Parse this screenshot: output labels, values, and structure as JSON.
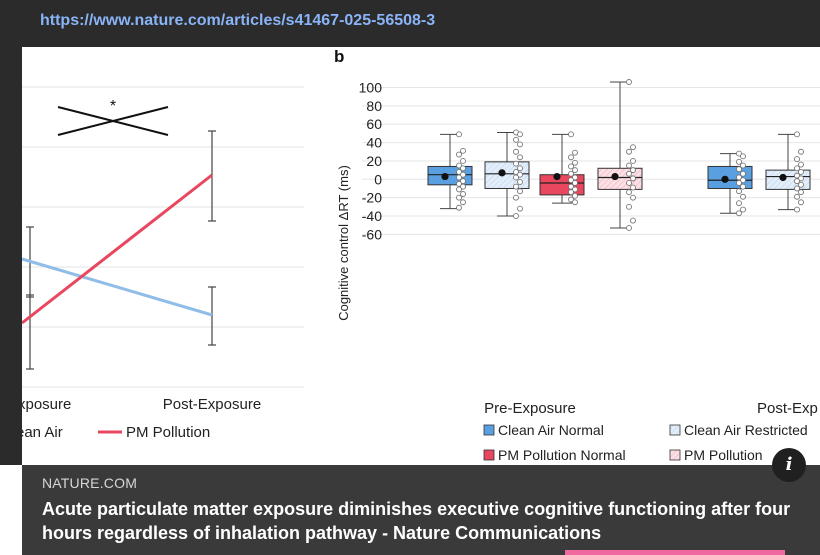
{
  "url_bar": {
    "url": "https://www.nature.com/articles/s41467-025-56508-3"
  },
  "caption": {
    "source": "NATURE.COM",
    "title": "Acute particulate matter exposure diminishes executive cognitive functioning after four hours regardless of inhalation pathway - Nature Communications"
  },
  "info_button": {
    "label": "i",
    "icon": "info-icon"
  },
  "chart_data": [
    {
      "type": "line",
      "panel_label": "",
      "categories": [
        "Pre-Exposure",
        "Post-Exposure"
      ],
      "category_labels_visible": [
        "xposure",
        "Post-Exposure"
      ],
      "significance": "*",
      "series": [
        {
          "name": "Clean Air",
          "legend_label_visible": "ean Air",
          "color": "#8fbde8"
        },
        {
          "name": "PM Pollution",
          "legend_label_visible": "PM Pollution",
          "color": "#e8475f"
        }
      ]
    },
    {
      "type": "box",
      "panel_label": "b",
      "ylabel": "Cognitive control ΔRT (ms)",
      "ylim": [
        -60,
        100
      ],
      "yticks": [
        -60,
        -40,
        -20,
        0,
        20,
        40,
        60,
        80,
        100
      ],
      "grid": true,
      "groups": [
        {
          "label": "Pre-Exposure",
          "label_visible": "Pre-Exposure"
        },
        {
          "label": "Post-Exposure",
          "label_visible": "Post-Exp"
        }
      ],
      "legend": [
        {
          "label": "Clean Air Normal",
          "color": "#4a90d9",
          "pattern": "solid"
        },
        {
          "label": "Clean Air Restricted",
          "color": "#cfe3f7",
          "pattern": "hatched"
        },
        {
          "label": "PM Pollution Normal",
          "color": "#e8475f",
          "pattern": "solid"
        },
        {
          "label": "PM Pollution",
          "label_visible": "PM Pollution",
          "color": "#f6c7cf",
          "pattern": "hatched"
        }
      ],
      "boxes": [
        {
          "group": "Pre-Exposure",
          "series": "Clean Air Normal",
          "whisker_low": -32,
          "q1": -6,
          "median": 5,
          "q3": 14,
          "whisker_high": 49,
          "mean": 3,
          "points": [
            49,
            31,
            27,
            20,
            15,
            12,
            8,
            5,
            2,
            -2,
            -5,
            -8,
            -11,
            -16,
            -20,
            -25,
            -31
          ]
        },
        {
          "group": "Pre-Exposure",
          "series": "Clean Air Restricted",
          "whisker_low": -40,
          "q1": -10,
          "median": 6,
          "q3": 19,
          "whisker_high": 51,
          "mean": 7,
          "points": [
            51,
            49,
            43,
            38,
            30,
            24,
            17,
            12,
            8,
            5,
            2,
            -3,
            -8,
            -13,
            -20,
            -32,
            -40
          ]
        },
        {
          "group": "Pre-Exposure",
          "series": "PM Pollution Normal",
          "whisker_low": -26,
          "q1": -17,
          "median": -4,
          "q3": 5,
          "whisker_high": 49,
          "mean": 3,
          "points": [
            49,
            29,
            24,
            18,
            14,
            10,
            6,
            2,
            -1,
            -4,
            -8,
            -11,
            -14,
            -18,
            -22,
            -25
          ]
        },
        {
          "group": "Pre-Exposure",
          "series": "PM Pollution",
          "whisker_low": -53,
          "q1": -11,
          "median": 2,
          "q3": 12,
          "whisker_high": 106,
          "mean": 3,
          "points": [
            106,
            35,
            30,
            20,
            15,
            10,
            6,
            1,
            -4,
            -9,
            -14,
            -20,
            -30,
            -45,
            -53
          ]
        },
        {
          "group": "Post-Exposure",
          "series": "Clean Air Normal",
          "whisker_low": -37,
          "q1": -10,
          "median": -1,
          "q3": 14,
          "whisker_high": 28,
          "mean": 0,
          "points": [
            28,
            25,
            19,
            15,
            11,
            6,
            2,
            -1,
            -4,
            -8,
            -13,
            -19,
            -26,
            -33,
            -37
          ]
        },
        {
          "group": "Post-Exposure",
          "series": "Clean Air Restricted",
          "whisker_low": -33,
          "q1": -11,
          "median": 3,
          "q3": 10,
          "whisker_high": 49,
          "mean": 2,
          "points": [
            49,
            30,
            22,
            16,
            12,
            8,
            4,
            1,
            -2,
            -6,
            -10,
            -14,
            -19,
            -25,
            -33
          ]
        }
      ]
    }
  ]
}
